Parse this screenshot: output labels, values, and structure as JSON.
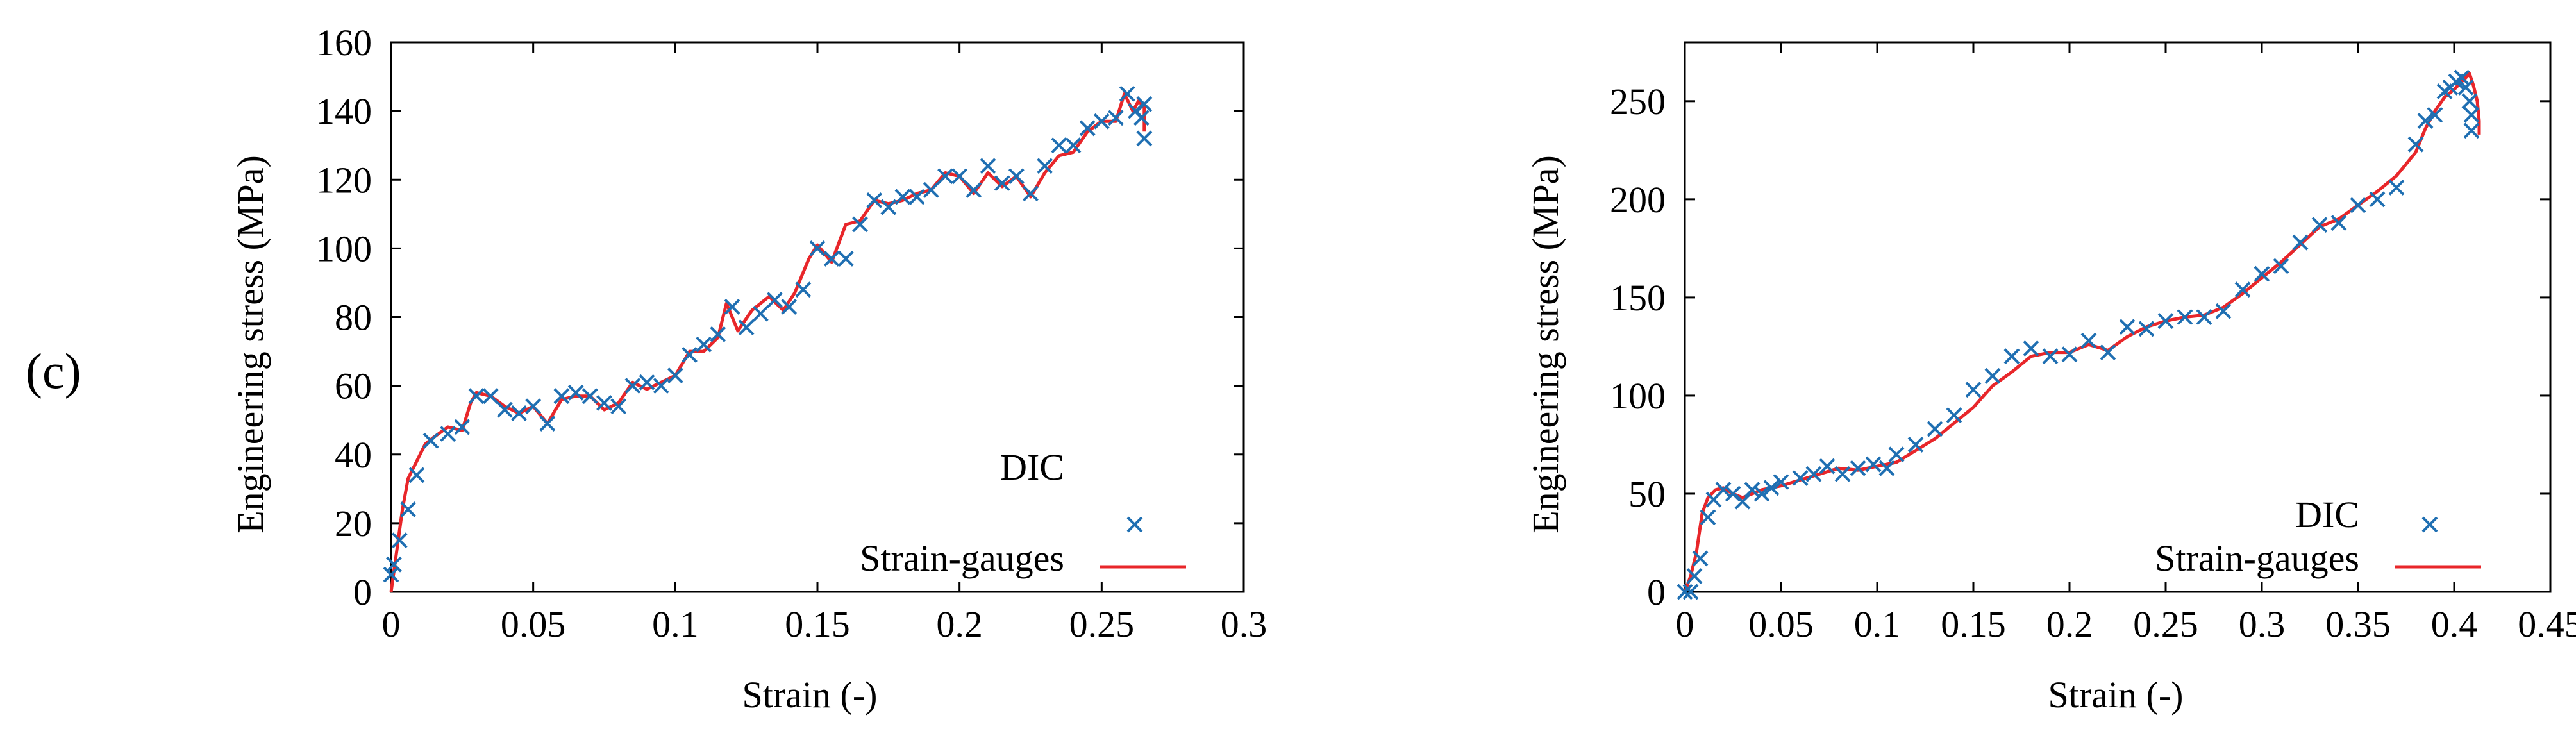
{
  "figure": {
    "panel_label": "(c)"
  },
  "colors": {
    "dic": "#1f6fb2",
    "strain": "#e8262a",
    "axis": "#000000"
  },
  "chart_data": [
    {
      "type": "line",
      "title": "",
      "xlabel": "Strain (-)",
      "ylabel": "Engineering stress (MPa)",
      "xlim": [
        0,
        0.3
      ],
      "ylim": [
        0,
        160
      ],
      "xticks": [
        0,
        0.05,
        0.1,
        0.15,
        0.2,
        0.25,
        0.3
      ],
      "xtick_labels": [
        "0",
        "0.05",
        "0.1",
        "0.15",
        "0.2",
        "0.25",
        "0.3"
      ],
      "yticks": [
        0,
        20,
        40,
        60,
        80,
        100,
        120,
        140,
        160
      ],
      "ytick_labels": [
        "0",
        "20",
        "40",
        "60",
        "80",
        "100",
        "120",
        "140",
        "160"
      ],
      "legend_position": "bottom-right",
      "series": [
        {
          "name": "DIC",
          "kind": "scatter",
          "marker": "x",
          "x": [
            0.0,
            0.001,
            0.003,
            0.006,
            0.009,
            0.014,
            0.02,
            0.025,
            0.03,
            0.035,
            0.04,
            0.045,
            0.05,
            0.055,
            0.06,
            0.065,
            0.07,
            0.075,
            0.08,
            0.085,
            0.09,
            0.095,
            0.1,
            0.105,
            0.11,
            0.115,
            0.12,
            0.125,
            0.13,
            0.135,
            0.14,
            0.145,
            0.15,
            0.155,
            0.16,
            0.165,
            0.17,
            0.175,
            0.18,
            0.185,
            0.19,
            0.195,
            0.2,
            0.205,
            0.21,
            0.215,
            0.22,
            0.225,
            0.23,
            0.235,
            0.24,
            0.245,
            0.25,
            0.255,
            0.259,
            0.262,
            0.264,
            0.265,
            0.265
          ],
          "y": [
            5,
            8,
            15,
            24,
            34,
            44,
            46,
            48,
            57,
            57,
            53,
            52,
            54,
            49,
            57,
            58,
            57,
            55,
            54,
            60,
            61,
            60,
            63,
            69,
            72,
            75,
            83,
            77,
            81,
            85,
            83,
            88,
            100,
            97,
            97,
            107,
            114,
            112,
            115,
            115,
            117,
            121,
            121,
            117,
            124,
            119,
            121,
            116,
            124,
            130,
            130,
            135,
            137,
            138,
            145,
            140,
            138,
            142,
            132
          ]
        },
        {
          "name": "Strain-gauges",
          "kind": "line",
          "x": [
            0.0,
            0.002,
            0.004,
            0.006,
            0.009,
            0.012,
            0.015,
            0.02,
            0.025,
            0.028,
            0.03,
            0.035,
            0.04,
            0.045,
            0.05,
            0.055,
            0.06,
            0.065,
            0.07,
            0.075,
            0.08,
            0.085,
            0.09,
            0.095,
            0.1,
            0.105,
            0.11,
            0.115,
            0.118,
            0.122,
            0.127,
            0.133,
            0.138,
            0.142,
            0.147,
            0.15,
            0.155,
            0.16,
            0.165,
            0.17,
            0.175,
            0.18,
            0.185,
            0.19,
            0.195,
            0.2,
            0.205,
            0.21,
            0.215,
            0.22,
            0.225,
            0.23,
            0.235,
            0.24,
            0.245,
            0.25,
            0.255,
            0.258,
            0.261,
            0.263,
            0.265,
            0.265
          ],
          "y": [
            0,
            12,
            24,
            33,
            38,
            43,
            45,
            48,
            47,
            55,
            58,
            57,
            54,
            52,
            54,
            49,
            56,
            57,
            57,
            53,
            55,
            61,
            59,
            61,
            63,
            70,
            70,
            74,
            84,
            76,
            82,
            86,
            82,
            87,
            97,
            101,
            96,
            107,
            108,
            114,
            113,
            114,
            116,
            117,
            122,
            121,
            116,
            122,
            118,
            121,
            115,
            122,
            127,
            128,
            134,
            137,
            137,
            145,
            140,
            143,
            141,
            134
          ]
        }
      ]
    },
    {
      "type": "line",
      "title": "",
      "xlabel": "Strain (-)",
      "ylabel": "Engineering stress (MPa)",
      "xlim": [
        0,
        0.45
      ],
      "ylim": [
        0,
        280
      ],
      "xticks": [
        0,
        0.05,
        0.1,
        0.15,
        0.2,
        0.25,
        0.3,
        0.35,
        0.4,
        0.45
      ],
      "xtick_labels": [
        "0",
        "0.05",
        "0.1",
        "0.15",
        "0.2",
        "0.25",
        "0.3",
        "0.35",
        "0.4",
        "0.45"
      ],
      "yticks": [
        0,
        50,
        100,
        150,
        200,
        250
      ],
      "ytick_labels": [
        "0",
        "50",
        "100",
        "150",
        "200",
        "250"
      ],
      "legend_position": "bottom-right",
      "series": [
        {
          "name": "DIC",
          "kind": "scatter",
          "marker": "x",
          "x": [
            0.0,
            0.003,
            0.005,
            0.008,
            0.012,
            0.015,
            0.02,
            0.025,
            0.03,
            0.035,
            0.04,
            0.045,
            0.05,
            0.06,
            0.067,
            0.074,
            0.082,
            0.09,
            0.098,
            0.105,
            0.11,
            0.12,
            0.13,
            0.14,
            0.15,
            0.16,
            0.17,
            0.18,
            0.19,
            0.2,
            0.21,
            0.22,
            0.23,
            0.24,
            0.25,
            0.26,
            0.27,
            0.28,
            0.29,
            0.3,
            0.31,
            0.32,
            0.33,
            0.34,
            0.35,
            0.36,
            0.37,
            0.38,
            0.385,
            0.39,
            0.395,
            0.398,
            0.401,
            0.404,
            0.406,
            0.408,
            0.409,
            0.409
          ],
          "y": [
            0,
            0,
            8,
            17,
            38,
            47,
            52,
            50,
            46,
            52,
            50,
            53,
            56,
            58,
            60,
            64,
            60,
            63,
            65,
            63,
            70,
            75,
            83,
            90,
            103,
            110,
            120,
            124,
            120,
            121,
            128,
            122,
            135,
            134,
            138,
            140,
            140,
            143,
            154,
            162,
            166,
            178,
            187,
            188,
            197,
            200,
            206,
            228,
            240,
            243,
            255,
            257,
            260,
            262,
            257,
            250,
            243,
            235
          ]
        },
        {
          "name": "Strain-gauges",
          "kind": "line",
          "x": [
            0.0,
            0.003,
            0.006,
            0.009,
            0.012,
            0.016,
            0.02,
            0.025,
            0.03,
            0.035,
            0.04,
            0.05,
            0.06,
            0.07,
            0.08,
            0.09,
            0.1,
            0.11,
            0.12,
            0.13,
            0.14,
            0.15,
            0.16,
            0.17,
            0.18,
            0.19,
            0.2,
            0.21,
            0.22,
            0.23,
            0.24,
            0.25,
            0.26,
            0.27,
            0.28,
            0.29,
            0.3,
            0.31,
            0.32,
            0.33,
            0.34,
            0.35,
            0.36,
            0.37,
            0.38,
            0.385,
            0.39,
            0.395,
            0.4,
            0.405,
            0.408,
            0.41,
            0.412,
            0.413,
            0.413
          ],
          "y": [
            0,
            8,
            20,
            40,
            48,
            52,
            53,
            50,
            48,
            50,
            52,
            54,
            57,
            60,
            63,
            62,
            64,
            66,
            72,
            78,
            86,
            94,
            105,
            112,
            120,
            122,
            122,
            126,
            123,
            130,
            135,
            138,
            140,
            141,
            145,
            152,
            160,
            168,
            177,
            186,
            190,
            197,
            204,
            212,
            224,
            236,
            245,
            252,
            256,
            261,
            264,
            258,
            250,
            240,
            233
          ]
        }
      ]
    }
  ]
}
